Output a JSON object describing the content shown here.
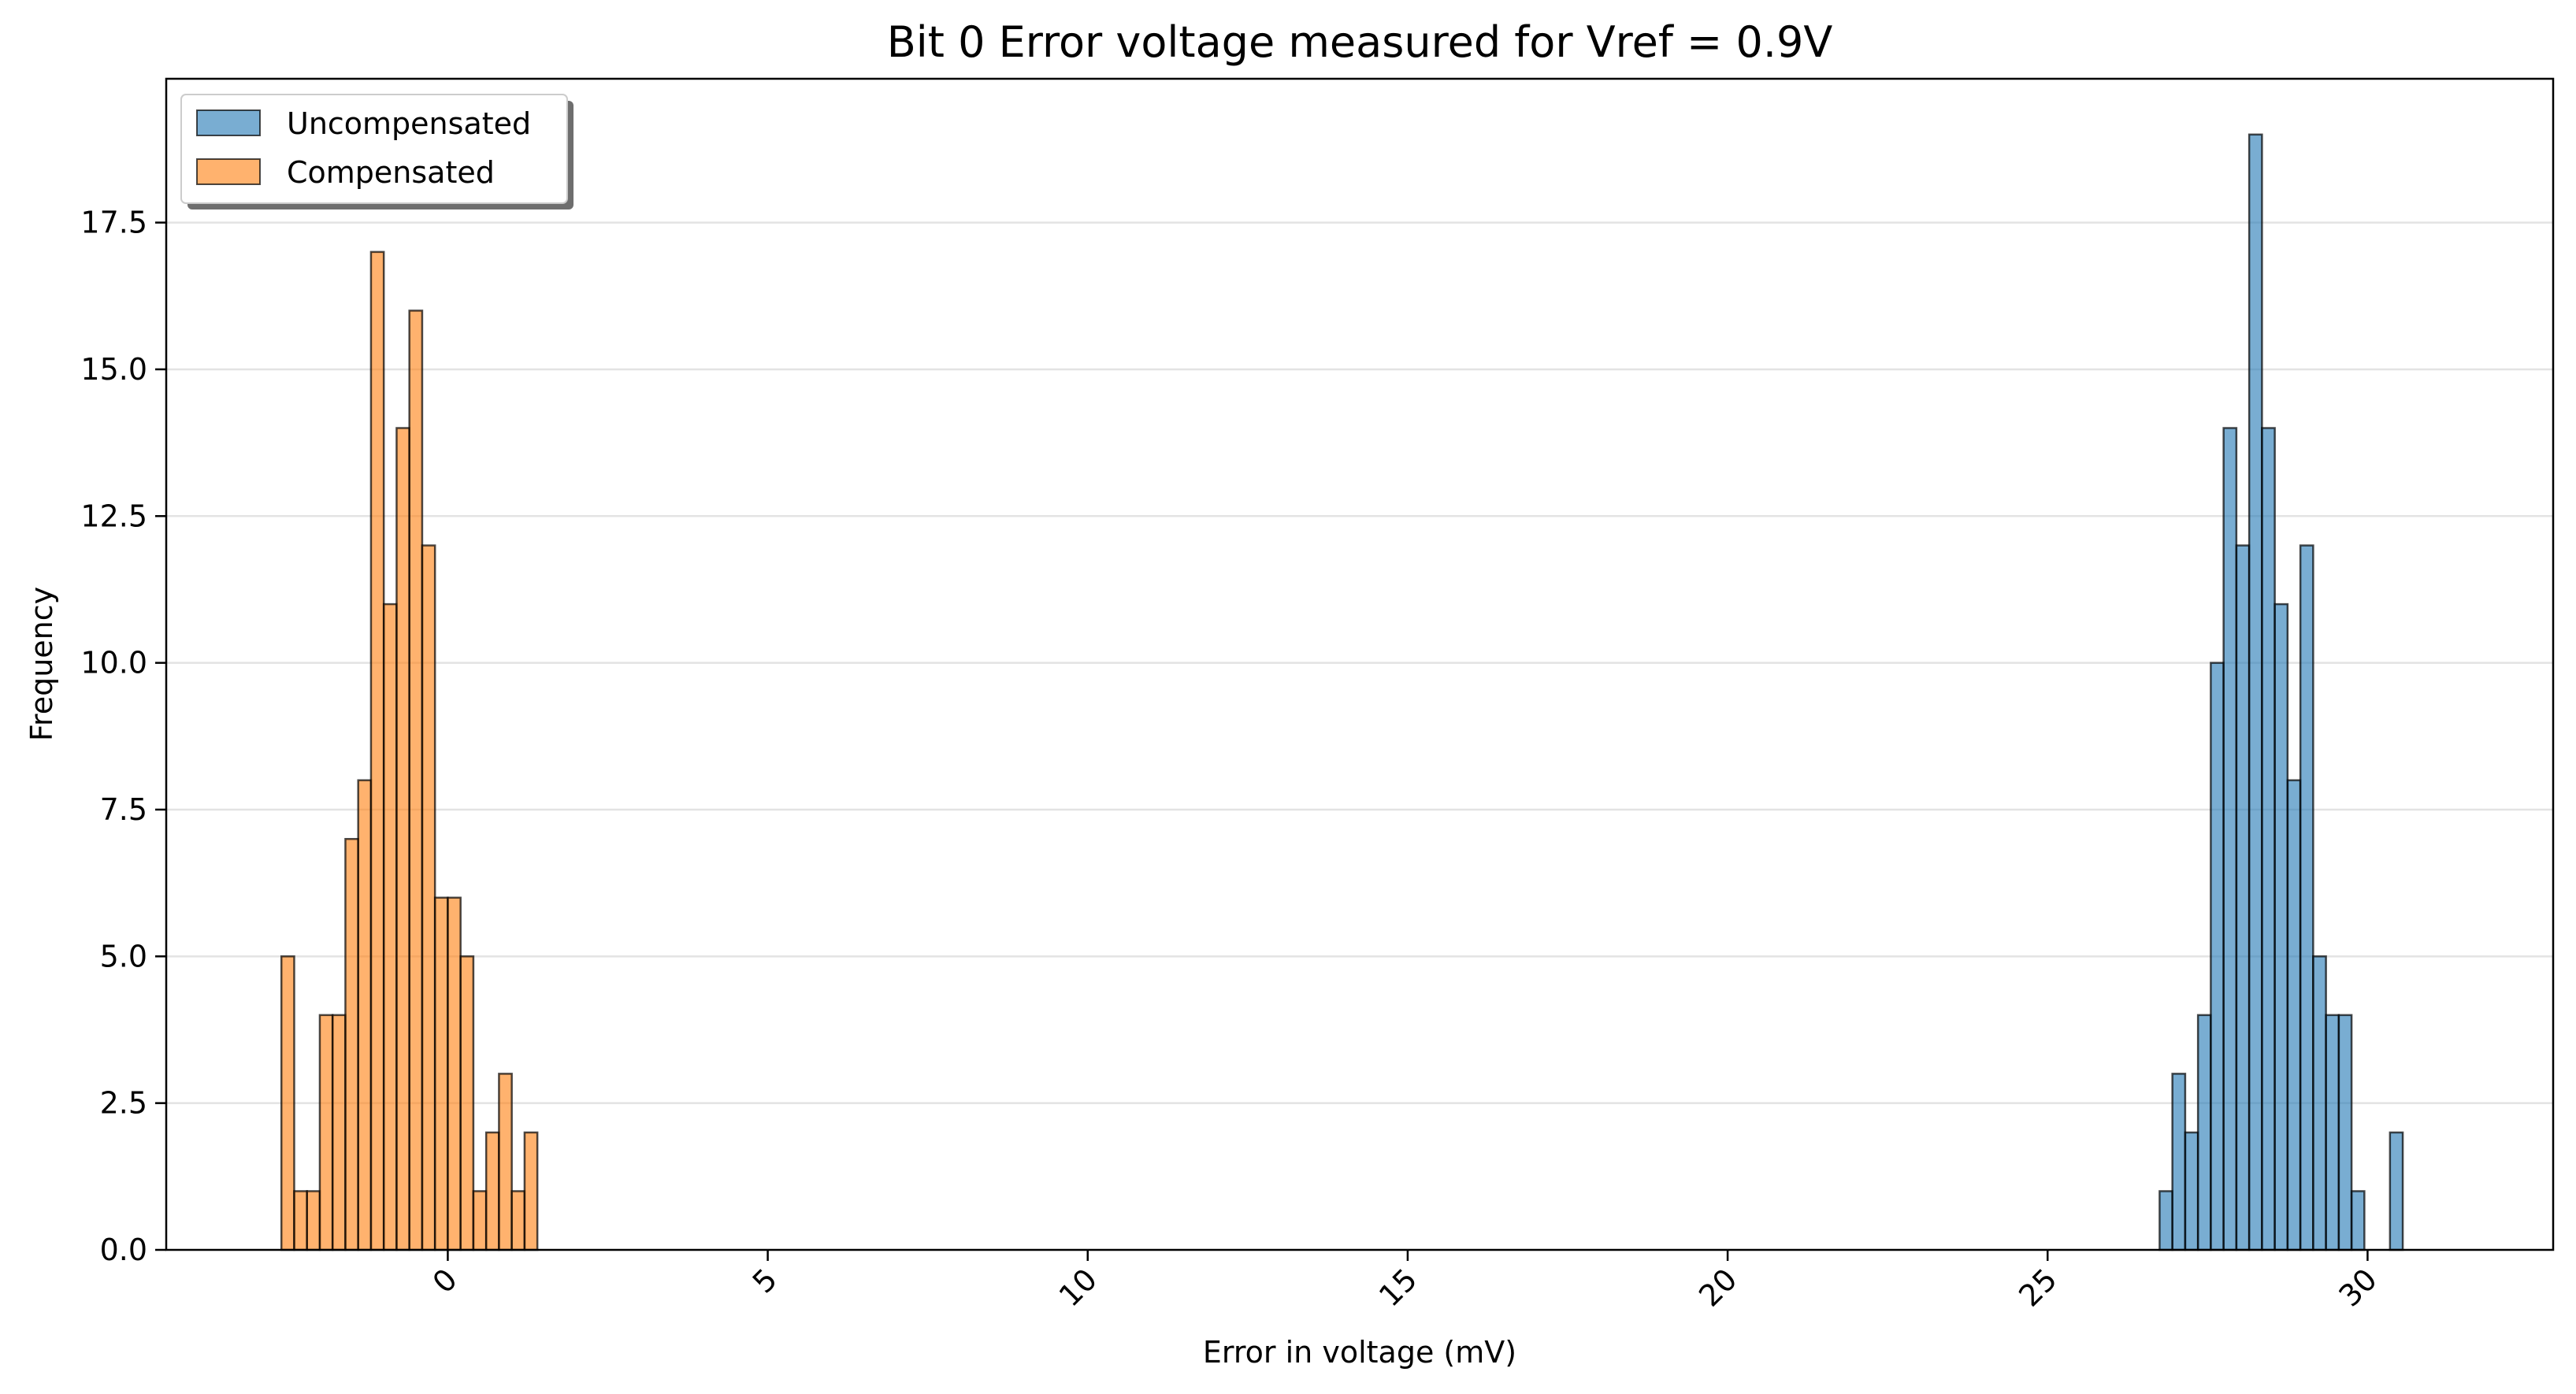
{
  "chart_data": {
    "type": "bar",
    "title": "Bit 0 Error voltage measured for Vref = 0.9V",
    "xlabel": "Error in voltage (mV)",
    "ylabel": "Frequency",
    "xlim": [
      -4.4,
      32.9
    ],
    "ylim": [
      0,
      19.95
    ],
    "xticks": [
      0,
      5,
      10,
      15,
      20,
      25,
      30
    ],
    "xtick_labels": [
      "0",
      "5",
      "10",
      "15",
      "20",
      "25",
      "30"
    ],
    "xtick_rotation": 45,
    "yticks": [
      0,
      2.5,
      5,
      7.5,
      10,
      12.5,
      15,
      17.5
    ],
    "ytick_labels": [
      "0.0",
      "2.5",
      "5.0",
      "7.5",
      "10.0",
      "12.5",
      "15.0",
      "17.5"
    ],
    "grid": "horizontal",
    "legend_position": "top-left",
    "bin_width": 0.2,
    "series": [
      {
        "name": "Uncompensated",
        "color": "#1f77b4",
        "bin_start": 26.75,
        "counts": [
          1,
          3,
          2,
          4,
          10,
          14,
          12,
          19,
          14,
          11,
          8,
          12,
          5,
          4,
          4,
          1,
          0,
          0,
          2
        ]
      },
      {
        "name": "Compensated",
        "color": "#ff7f0e",
        "bin_start": -2.6,
        "counts": [
          5,
          1,
          1,
          4,
          4,
          7,
          8,
          17,
          11,
          14,
          16,
          12,
          6,
          6,
          5,
          1,
          2,
          3,
          1,
          2
        ]
      }
    ]
  }
}
